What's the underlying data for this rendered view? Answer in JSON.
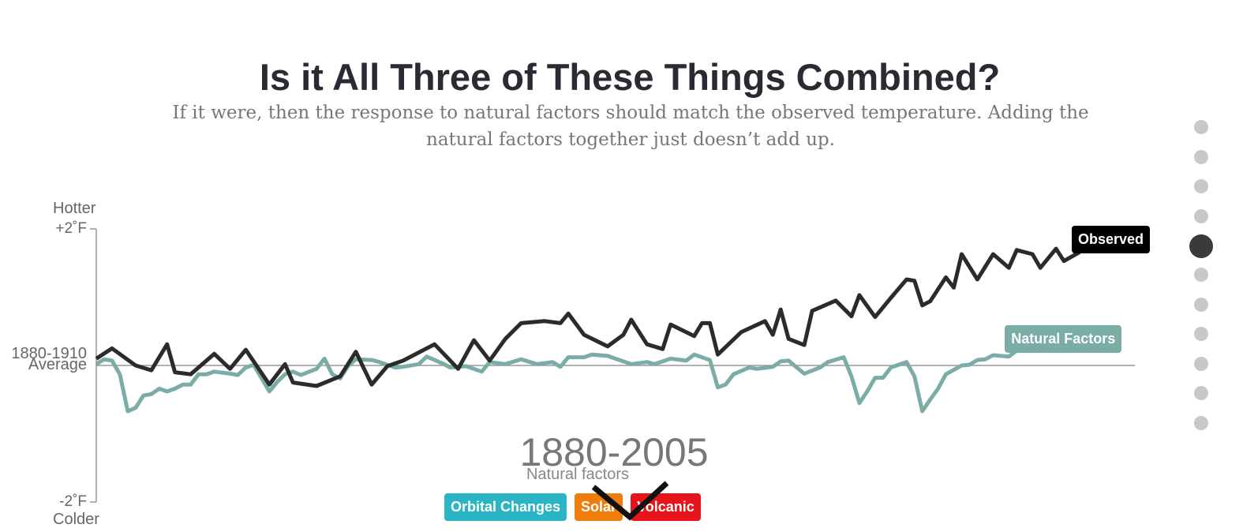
{
  "title": "Is it All Three of These Things Combined?",
  "subtitle": "If it were, then the response to natural factors should match the observed temperature. Adding the natural factors together just doesn’t add up.",
  "chart_data": {
    "type": "line",
    "y_label_top": "Hotter",
    "y_label_bottom": "Colder",
    "period": "1880-2005",
    "period_caption": "Natural factors",
    "xlim": [
      1880,
      2005
    ],
    "ylim": [
      -2,
      2
    ],
    "yticks": [
      {
        "value": -2,
        "label": "-2˚F"
      },
      {
        "value": 0,
        "label": "1880-1910 Average"
      },
      {
        "value": 2,
        "label": "+2˚F"
      }
    ],
    "series": [
      {
        "name": "Observed",
        "color": "#2b2b2b",
        "x": [
          1880,
          1882,
          1885,
          1887,
          1889,
          1890,
          1892,
          1895,
          1897,
          1899,
          1902,
          1904,
          1905,
          1908,
          1911,
          1913,
          1915,
          1917,
          1919,
          1923,
          1926,
          1928,
          1930,
          1932,
          1934,
          1937,
          1939,
          1940,
          1942,
          1945,
          1947,
          1948,
          1950,
          1952,
          1953,
          1956,
          1957,
          1958,
          1959,
          1962,
          1965,
          1966,
          1967,
          1968,
          1970,
          1971,
          1974,
          1976,
          1977,
          1979,
          1981,
          1983,
          1984,
          1985,
          1986,
          1988,
          1989,
          1990,
          1992,
          1994,
          1996,
          1997,
          1999,
          2000,
          2002,
          2003,
          2005
        ],
        "values": [
          0.1,
          0.25,
          0.0,
          -0.07,
          0.31,
          -0.1,
          -0.13,
          0.17,
          -0.05,
          0.23,
          -0.28,
          0.02,
          -0.25,
          -0.3,
          -0.16,
          0.2,
          -0.28,
          -0.01,
          0.07,
          0.31,
          -0.05,
          0.37,
          0.07,
          0.39,
          0.62,
          0.65,
          0.62,
          0.76,
          0.45,
          0.28,
          0.45,
          0.67,
          0.31,
          0.24,
          0.6,
          0.43,
          0.62,
          0.62,
          0.16,
          0.49,
          0.65,
          0.45,
          0.82,
          0.39,
          0.3,
          0.8,
          0.95,
          0.72,
          1.03,
          0.71,
          0.99,
          1.26,
          1.24,
          0.88,
          0.94,
          1.29,
          1.14,
          1.63,
          1.26,
          1.63,
          1.43,
          1.69,
          1.63,
          1.43,
          1.71,
          1.53,
          1.66
        ]
      },
      {
        "name": "Natural Factors",
        "color": "#7aada6",
        "x": [
          1880,
          1881,
          1882,
          1883,
          1884,
          1885,
          1886,
          1887,
          1888,
          1889,
          1890,
          1891,
          1892,
          1893,
          1894,
          1895,
          1897,
          1898,
          1899,
          1900,
          1902,
          1903,
          1904,
          1905,
          1906,
          1908,
          1909,
          1910,
          1911,
          1912,
          1913,
          1915,
          1916,
          1918,
          1919,
          1921,
          1922,
          1924,
          1925,
          1927,
          1929,
          1930,
          1932,
          1934,
          1936,
          1938,
          1939,
          1940,
          1942,
          1943,
          1945,
          1946,
          1948,
          1950,
          1951,
          1953,
          1955,
          1956,
          1958,
          1959,
          1960,
          1961,
          1963,
          1964,
          1966,
          1967,
          1968,
          1970,
          1972,
          1973,
          1975,
          1976,
          1977,
          1978,
          1979,
          1980,
          1981,
          1982,
          1983,
          1984,
          1985,
          1986,
          1987,
          1988,
          1990,
          1991,
          1992,
          1993,
          1994,
          1996,
          1997
        ],
        "values": [
          0.02,
          0.09,
          0.07,
          -0.13,
          -0.67,
          -0.62,
          -0.44,
          -0.42,
          -0.34,
          -0.38,
          -0.34,
          -0.28,
          -0.28,
          -0.13,
          -0.13,
          -0.09,
          -0.12,
          -0.14,
          -0.03,
          0.01,
          -0.38,
          -0.24,
          -0.13,
          -0.09,
          -0.14,
          -0.05,
          0.1,
          -0.13,
          -0.19,
          -0.01,
          0.09,
          0.08,
          0.05,
          -0.03,
          -0.02,
          0.02,
          0.13,
          0.03,
          -0.03,
          -0.01,
          -0.09,
          0.05,
          0.02,
          0.09,
          0.02,
          0.05,
          -0.02,
          0.12,
          0.12,
          0.16,
          0.14,
          0.1,
          0.02,
          0.05,
          0.02,
          0.1,
          0.07,
          0.16,
          0.08,
          -0.32,
          -0.28,
          -0.13,
          -0.03,
          -0.05,
          -0.02,
          0.06,
          0.07,
          -0.12,
          -0.03,
          0.05,
          0.12,
          -0.16,
          -0.55,
          -0.38,
          -0.18,
          -0.18,
          -0.03,
          0.01,
          0.05,
          -0.16,
          -0.67,
          -0.5,
          -0.34,
          -0.13,
          0.0,
          0.01,
          0.08,
          0.09,
          0.15,
          0.13,
          0.22
        ]
      }
    ]
  },
  "toggles": [
    {
      "label": "Orbital Changes",
      "color": "#2bb5c4"
    },
    {
      "label": "Solar",
      "color": "#f07c0b"
    },
    {
      "label": "Volcanic",
      "color": "#e8141c"
    }
  ]
}
